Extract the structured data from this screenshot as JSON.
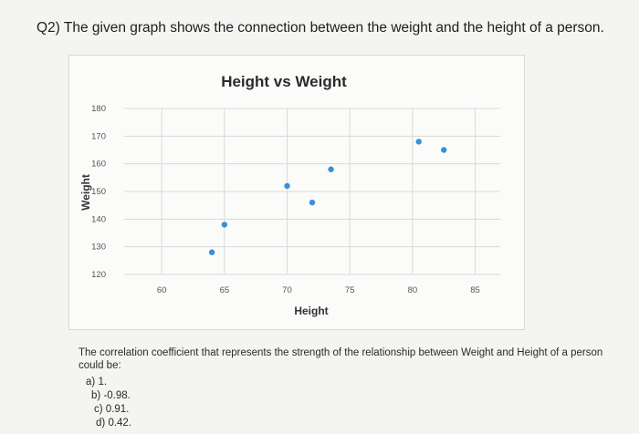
{
  "question": "Q2) The given graph shows the connection between the weight and the height of a person.",
  "chart_data": {
    "type": "scatter",
    "title": "Height vs Weight",
    "xlabel": "Height",
    "ylabel": "Weight",
    "xlim": [
      57,
      87
    ],
    "ylim": [
      120,
      180
    ],
    "xticks": [
      60,
      65,
      70,
      75,
      80,
      85
    ],
    "yticks": [
      120,
      130,
      140,
      150,
      160,
      170,
      180
    ],
    "points": [
      {
        "x": 64,
        "y": 128
      },
      {
        "x": 65,
        "y": 138
      },
      {
        "x": 70,
        "y": 152
      },
      {
        "x": 72,
        "y": 146
      },
      {
        "x": 73.5,
        "y": 158
      },
      {
        "x": 80.5,
        "y": 168
      },
      {
        "x": 82.5,
        "y": 165
      }
    ],
    "grid": true,
    "colors": {
      "point": "#3b8fd9",
      "grid": "#d9d9d9"
    }
  },
  "prompt": "The correlation coefficient that represents the strength of the relationship between Weight and Height of a person could be:",
  "options": [
    {
      "label": "a)",
      "value": "1."
    },
    {
      "label": "b)",
      "value": "-0.98."
    },
    {
      "label": "c)",
      "value": "0.91."
    },
    {
      "label": "d)",
      "value": "0.42."
    }
  ]
}
